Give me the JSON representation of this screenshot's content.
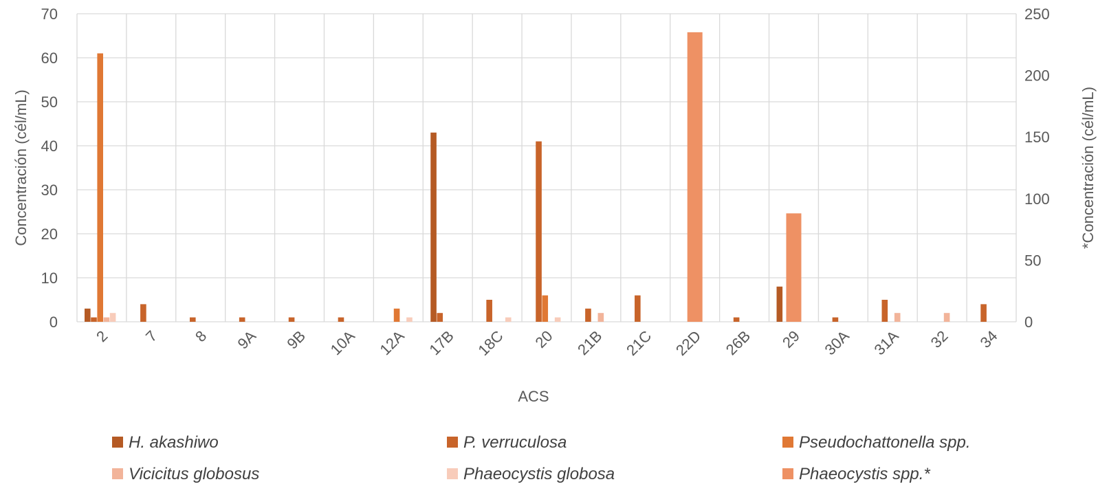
{
  "chart_data": {
    "type": "bar",
    "title": "",
    "xlabel": "ACS",
    "ylabel": "Concentración (cél/mL)",
    "y2label": "*Concentración (cél/mL)",
    "ylim": [
      0,
      70
    ],
    "y2lim": [
      0,
      250
    ],
    "yticks": [
      "0",
      "10",
      "20",
      "30",
      "40",
      "50",
      "60",
      "70"
    ],
    "y2ticks": [
      "0",
      "50",
      "100",
      "150",
      "200",
      "250"
    ],
    "grid": true,
    "legend_position": "bottom",
    "categories": [
      "2",
      "7",
      "8",
      "9A",
      "9B",
      "10A",
      "12A",
      "17B",
      "18C",
      "20",
      "21B",
      "21C",
      "22D",
      "26B",
      "29",
      "30A",
      "31A",
      "32",
      "34"
    ],
    "series": [
      {
        "name": "H. akashiwo",
        "axis": "primary",
        "color": "#B55A24",
        "values": [
          3,
          0,
          0,
          0,
          0,
          0,
          0,
          43,
          0,
          0,
          0,
          0,
          0,
          0,
          8,
          0,
          0,
          0,
          0
        ]
      },
      {
        "name": "P. verruculosa",
        "axis": "primary",
        "color": "#C8642A",
        "values": [
          1,
          4,
          1,
          1,
          1,
          1,
          0,
          2,
          5,
          41,
          3,
          6,
          0,
          1,
          0,
          1,
          5,
          0,
          4
        ]
      },
      {
        "name": "Pseudochattonella spp.",
        "axis": "primary",
        "color": "#E07834",
        "values": [
          61,
          0,
          0,
          0,
          0,
          0,
          3,
          0,
          0,
          6,
          0,
          0,
          0,
          0,
          0,
          0,
          0,
          0,
          0
        ]
      },
      {
        "name": "Vicicitus globosus",
        "axis": "primary",
        "color": "#F2B49A",
        "values": [
          1,
          0,
          0,
          0,
          0,
          0,
          0,
          0,
          0,
          0,
          2,
          0,
          0,
          0,
          0,
          0,
          2,
          2,
          0
        ]
      },
      {
        "name": "Phaeocystis globosa",
        "axis": "primary",
        "color": "#F8CCBA",
        "values": [
          2,
          0,
          0,
          0,
          0,
          0,
          1,
          0,
          1,
          1,
          0,
          0,
          0,
          0,
          0,
          0,
          0,
          0,
          0
        ]
      },
      {
        "name": "Phaeocystis spp.*",
        "axis": "secondary",
        "color": "#EE9164",
        "values": [
          0,
          0,
          0,
          0,
          0,
          0,
          0,
          0,
          0,
          0,
          0,
          0,
          235,
          0,
          88,
          0,
          0,
          0,
          0
        ]
      }
    ]
  }
}
